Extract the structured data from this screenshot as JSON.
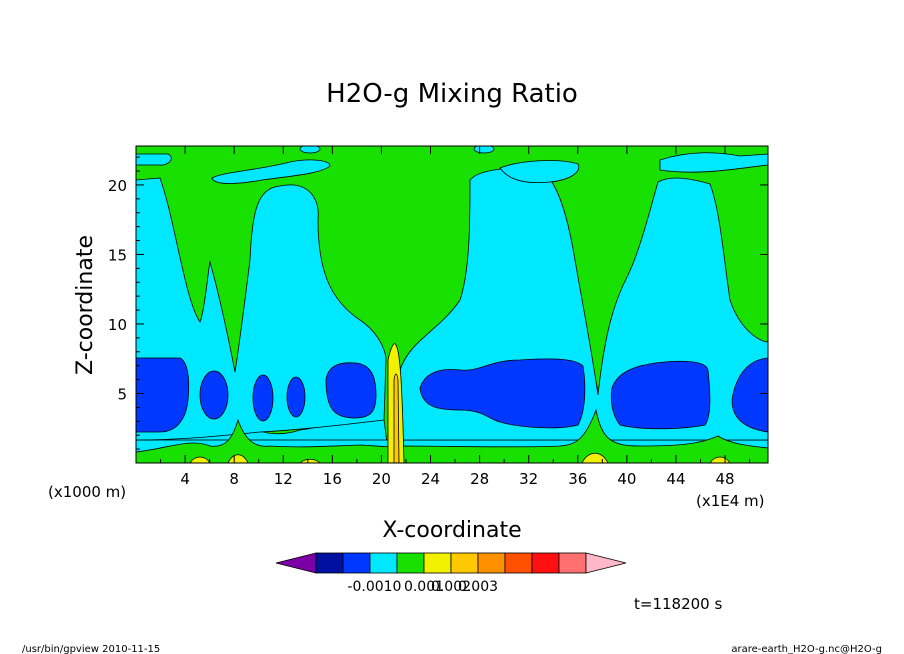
{
  "chart_data": {
    "type": "heatmap",
    "title": "H2O-g Mixing Ratio",
    "xlabel": "X-coordinate",
    "ylabel": "Z-coordinate",
    "x_unit_left": "(x1000 m)",
    "x_unit_right": "(x1E4 m)",
    "x_ticks": [
      "4",
      "8",
      "12",
      "16",
      "20",
      "24",
      "28",
      "32",
      "36",
      "40",
      "44",
      "48"
    ],
    "y_ticks": [
      "5",
      "10",
      "15",
      "20"
    ],
    "xlim": [
      0,
      51.5
    ],
    "ylim": [
      0,
      22.8
    ],
    "time_label": "t=118200 s",
    "colorbar": {
      "colors": [
        "#7b00a8",
        "#0010a0",
        "#0038ff",
        "#00e8ff",
        "#18e000",
        "#f0f000",
        "#ffc800",
        "#ff9000",
        "#ff5000",
        "#ff1010",
        "#ff7070",
        "#ffb8c8"
      ],
      "tick_labels": [
        "-0.001",
        "0",
        "0.001",
        "0.002",
        "0.003"
      ]
    },
    "levels": {
      "background": "#18e000",
      "cyan": "#00e8ff",
      "blue": "#0038ff",
      "yellow": "#f0f000",
      "orange": "#ffc800"
    }
  },
  "footer": {
    "left": "/usr/bin/gpview  2010-11-15",
    "right": "arare-earth_H2O-g.nc@H2O-g"
  }
}
